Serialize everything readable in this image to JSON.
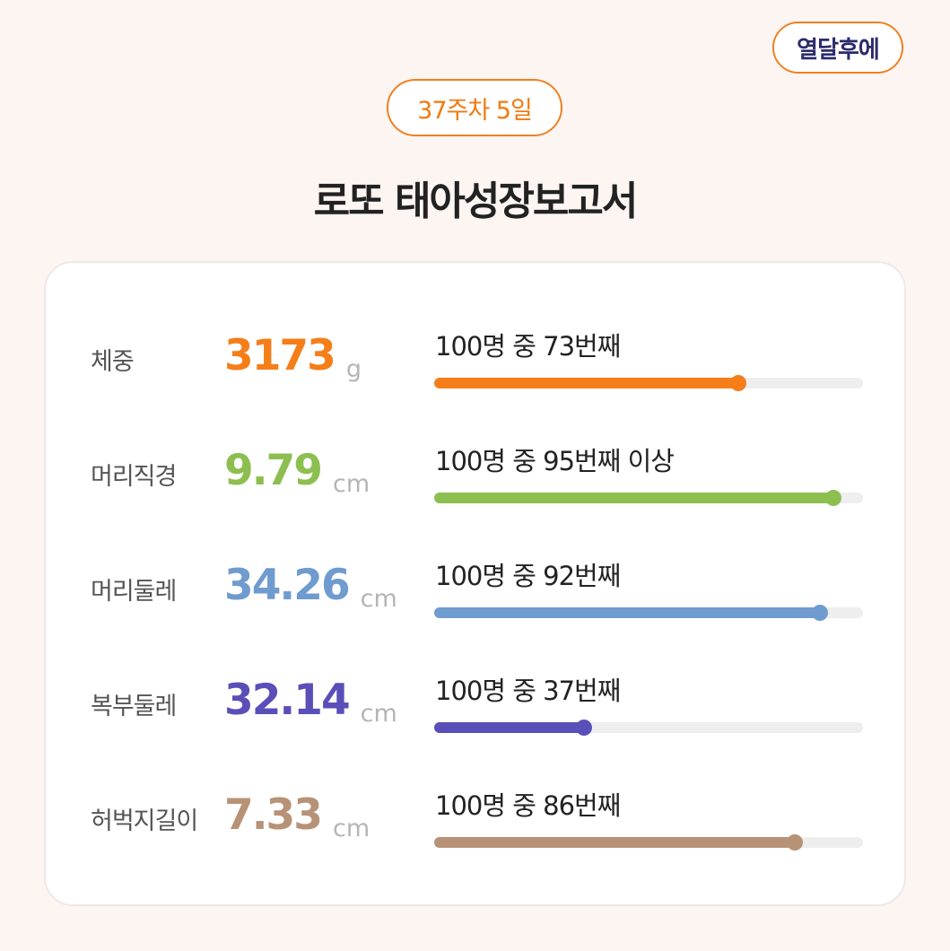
{
  "header": {
    "brand_label": "열달후에",
    "week_label": "37주차 5일",
    "title": "로또 태아성장보고서"
  },
  "metrics": [
    {
      "label": "체중",
      "value": "3173",
      "unit": "g",
      "rank_text": "100명 중 73번째",
      "percentile": 0.71,
      "color": "#f57e19"
    },
    {
      "label": "머리직경",
      "value": "9.79",
      "unit": "cm",
      "rank_text": "100명 중 95번째 이상",
      "percentile": 0.93,
      "color": "#8cbf4f"
    },
    {
      "label": "머리둘레",
      "value": "34.26",
      "unit": "cm",
      "rank_text": "100명 중 92번째",
      "percentile": 0.9,
      "color": "#6f9bcf"
    },
    {
      "label": "복부둘레",
      "value": "32.14",
      "unit": "cm",
      "rank_text": "100명 중 37번째",
      "percentile": 0.35,
      "color": "#5a4fb8"
    },
    {
      "label": "허벅지길이",
      "value": "7.33",
      "unit": "cm",
      "rank_text": "100명 중 86번째",
      "percentile": 0.84,
      "color": "#b79276"
    }
  ]
}
